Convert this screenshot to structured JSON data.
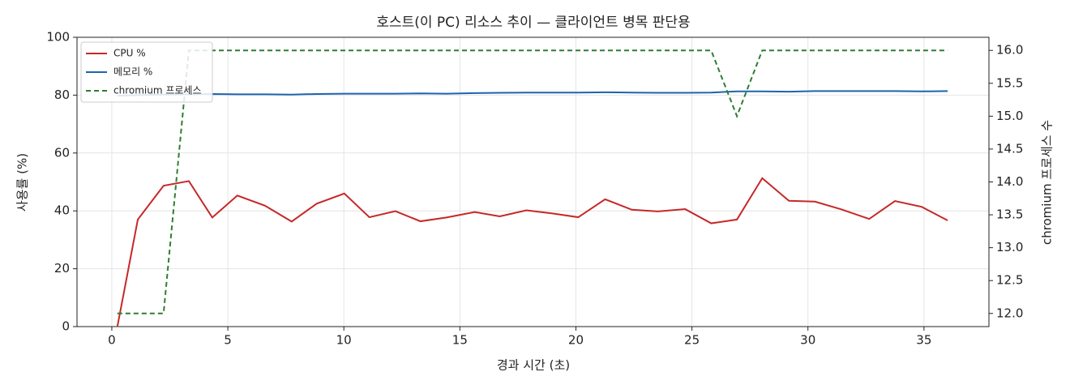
{
  "chart_data": {
    "type": "line",
    "title": "호스트(이 PC) 리소스 추이 — 클라이언트 병목 판단용",
    "xlabel": "경과 시간 (초)",
    "ylabel": "사용률 (%)",
    "y2label": "chromium 프로세스 수",
    "x": [
      0.24,
      1.12,
      2.23,
      3.32,
      4.33,
      5.41,
      6.6,
      7.75,
      8.83,
      10.02,
      11.1,
      12.22,
      13.3,
      14.42,
      15.64,
      16.72,
      17.87,
      18.99,
      20.1,
      21.26,
      22.41,
      23.53,
      24.71,
      25.83,
      26.94,
      28.03,
      29.18,
      30.3,
      31.45,
      32.64,
      33.75,
      34.9,
      36.02
    ],
    "series": [
      {
        "name": "CPU %",
        "color": "#c62828",
        "style": "solid",
        "values": [
          0,
          37,
          48.7,
          50.3,
          37.7,
          45.3,
          41.8,
          36.3,
          42.5,
          46,
          37.8,
          39.9,
          36.4,
          37.7,
          39.6,
          38.1,
          40.2,
          39.1,
          37.8,
          44,
          40.4,
          39.8,
          40.6,
          35.7,
          37,
          51.3,
          43.5,
          43.2,
          40.5,
          37.2,
          43.4,
          41.4,
          36.7
        ]
      },
      {
        "name": "메모리 %",
        "color": "#1e63b0",
        "style": "solid",
        "values": [
          79.8,
          80.0,
          80.2,
          80.3,
          80.4,
          80.3,
          80.3,
          80.2,
          80.4,
          80.5,
          80.5,
          80.5,
          80.6,
          80.5,
          80.7,
          80.8,
          80.9,
          80.9,
          80.9,
          81.0,
          80.9,
          80.8,
          80.8,
          80.9,
          81.3,
          81.3,
          81.2,
          81.4,
          81.4,
          81.4,
          81.4,
          81.3,
          81.4
        ]
      },
      {
        "name": "chromium 프로세스",
        "color": "#2e7d32",
        "style": "dashed",
        "axis": "y2",
        "values": [
          12,
          12,
          12,
          16,
          16,
          16,
          16,
          16,
          16,
          16,
          16,
          16,
          16,
          16,
          16,
          16,
          16,
          16,
          16,
          16,
          16,
          16,
          16,
          16,
          15,
          16,
          16,
          16,
          16,
          16,
          16,
          16,
          16
        ]
      }
    ],
    "xlim": [
      -1.5,
      37.8
    ],
    "xticks": [
      0,
      5,
      10,
      15,
      20,
      25,
      30,
      35
    ],
    "ylim": [
      0,
      100
    ],
    "yticks": [
      0,
      20,
      40,
      60,
      80,
      100
    ],
    "y2lim": [
      11.8,
      16.2
    ],
    "y2ticks": [
      {
        "value": 12,
        "label": "12.0"
      },
      12.5,
      {
        "value": 13,
        "label": "13.0"
      },
      13.5,
      {
        "value": 14,
        "label": "14.0"
      },
      14.5,
      {
        "value": 15,
        "label": "15.0"
      },
      15.5,
      {
        "value": 16,
        "label": "16.0"
      }
    ],
    "grid": true,
    "legend": "upper-left"
  }
}
